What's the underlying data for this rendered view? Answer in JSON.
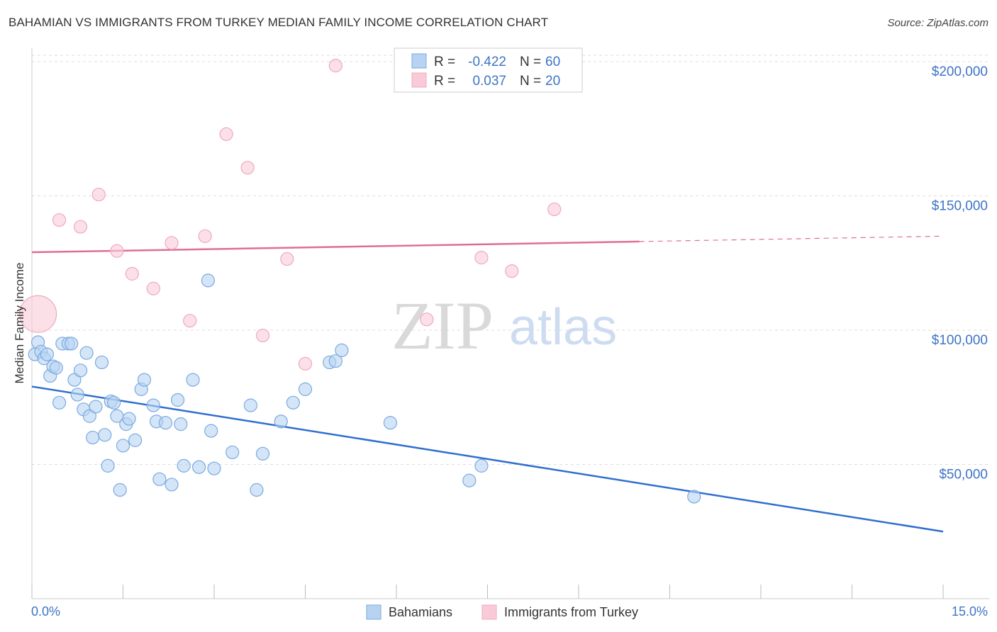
{
  "title": "BAHAMIAN VS IMMIGRANTS FROM TURKEY MEDIAN FAMILY INCOME CORRELATION CHART",
  "source": "Source: ZipAtlas.com",
  "watermark": {
    "zip": "ZIP",
    "atlas": "atlas"
  },
  "chart_data": {
    "type": "scatter",
    "title": "BAHAMIAN VS IMMIGRANTS FROM TURKEY MEDIAN FAMILY INCOME CORRELATION CHART",
    "xlabel": "",
    "ylabel": "Median Family Income",
    "xlim": [
      0,
      15
    ],
    "ylim": [
      0,
      205000
    ],
    "x_tick_labels": [
      "0.0%",
      "15.0%"
    ],
    "y_ticks": [
      50000,
      100000,
      150000,
      200000
    ],
    "y_tick_labels": [
      "$50,000",
      "$100,000",
      "$150,000",
      "$200,000"
    ],
    "grid": true,
    "legend_position": "top-center",
    "series": [
      {
        "name": "Bahamians",
        "color": "#7aaae0",
        "fill": "#b8d3f2",
        "line_color": "#2f6fcf",
        "R": "-0.422",
        "N": "60",
        "trend": {
          "x0": 0.0,
          "y0": 79000,
          "x1": 15.0,
          "y1": 25000,
          "dashed_from": null
        },
        "points": [
          [
            0.05,
            91000
          ],
          [
            0.1,
            95500
          ],
          [
            0.15,
            92000
          ],
          [
            0.2,
            89500
          ],
          [
            0.25,
            91000
          ],
          [
            0.3,
            83000
          ],
          [
            0.35,
            86500
          ],
          [
            0.4,
            86000
          ],
          [
            0.45,
            73000
          ],
          [
            0.5,
            95000
          ],
          [
            0.6,
            95000
          ],
          [
            0.65,
            95000
          ],
          [
            0.7,
            81500
          ],
          [
            0.75,
            76000
          ],
          [
            0.8,
            85000
          ],
          [
            0.85,
            70500
          ],
          [
            0.9,
            91500
          ],
          [
            0.95,
            68000
          ],
          [
            1.0,
            60000
          ],
          [
            1.05,
            71500
          ],
          [
            1.15,
            88000
          ],
          [
            1.2,
            61000
          ],
          [
            1.25,
            49500
          ],
          [
            1.3,
            73500
          ],
          [
            1.35,
            73000
          ],
          [
            1.4,
            68000
          ],
          [
            1.45,
            40500
          ],
          [
            1.5,
            57000
          ],
          [
            1.55,
            65000
          ],
          [
            1.6,
            67000
          ],
          [
            1.7,
            59000
          ],
          [
            1.8,
            78000
          ],
          [
            1.85,
            81500
          ],
          [
            2.0,
            72000
          ],
          [
            2.05,
            66000
          ],
          [
            2.1,
            44500
          ],
          [
            2.2,
            65500
          ],
          [
            2.3,
            42500
          ],
          [
            2.4,
            74000
          ],
          [
            2.45,
            65000
          ],
          [
            2.5,
            49500
          ],
          [
            2.65,
            81500
          ],
          [
            2.75,
            49000
          ],
          [
            2.9,
            118500
          ],
          [
            2.95,
            62500
          ],
          [
            3.0,
            48500
          ],
          [
            3.3,
            54500
          ],
          [
            3.6,
            72000
          ],
          [
            3.7,
            40500
          ],
          [
            3.8,
            54000
          ],
          [
            4.1,
            66000
          ],
          [
            4.3,
            73000
          ],
          [
            4.5,
            78000
          ],
          [
            4.9,
            88000
          ],
          [
            5.0,
            88500
          ],
          [
            5.1,
            92500
          ],
          [
            5.9,
            65500
          ],
          [
            7.2,
            44000
          ],
          [
            7.4,
            49500
          ],
          [
            10.9,
            38000
          ]
        ]
      },
      {
        "name": "Immigrants from Turkey",
        "color": "#f0a8c0",
        "fill": "#f9cbd8",
        "line_color": "#e06e93",
        "R": "0.037",
        "N": "20",
        "trend": {
          "x0": 0.0,
          "y0": 129000,
          "x1": 15.0,
          "y1": 135000,
          "dashed_from": 10.0
        },
        "points": [
          [
            0.1,
            106000,
            "large"
          ],
          [
            0.45,
            141000
          ],
          [
            0.8,
            138500
          ],
          [
            1.1,
            150500
          ],
          [
            1.4,
            129500
          ],
          [
            1.65,
            121000
          ],
          [
            2.0,
            115500
          ],
          [
            2.3,
            132500
          ],
          [
            2.6,
            103500
          ],
          [
            2.85,
            135000
          ],
          [
            3.2,
            173000
          ],
          [
            3.55,
            160500
          ],
          [
            3.8,
            98000
          ],
          [
            4.2,
            126500
          ],
          [
            4.5,
            87500
          ],
          [
            5.0,
            198500
          ],
          [
            6.5,
            104000
          ],
          [
            7.4,
            127000
          ],
          [
            7.9,
            122000
          ],
          [
            8.6,
            145000
          ]
        ]
      }
    ]
  },
  "legend": {
    "items": [
      {
        "r_label": "R =",
        "r_value": "-0.422",
        "n_label": "N =",
        "n_value": "60"
      },
      {
        "r_label": "R =",
        "r_value": "0.037",
        "n_label": "N =",
        "n_value": "20"
      }
    ]
  },
  "bottom_legend": {
    "items": [
      {
        "label": "Bahamians"
      },
      {
        "label": "Immigrants from Turkey"
      }
    ]
  }
}
